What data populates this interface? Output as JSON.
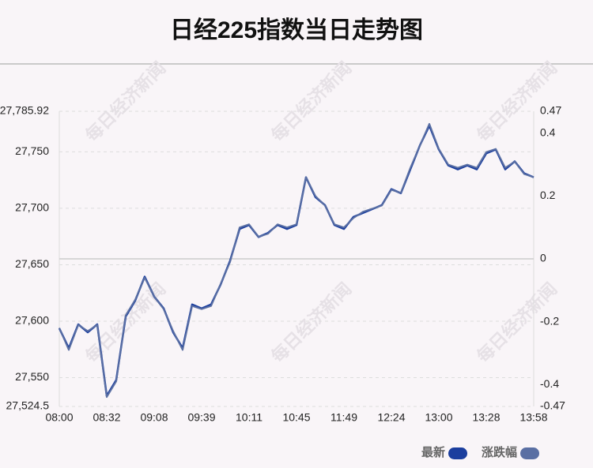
{
  "chart_data": {
    "type": "line",
    "title": "日经225指数当日走势图",
    "watermark": "每日经济新闻",
    "categories": [
      "08:00",
      null,
      null,
      null,
      null,
      "08:32",
      null,
      null,
      null,
      null,
      "09:08",
      null,
      null,
      null,
      null,
      "09:39",
      null,
      null,
      null,
      null,
      "10:11",
      null,
      null,
      null,
      null,
      "10:45",
      null,
      null,
      null,
      null,
      "11:49",
      null,
      null,
      null,
      null,
      "12:24",
      null,
      null,
      null,
      null,
      "13:00",
      null,
      null,
      null,
      null,
      "13:28",
      null,
      null,
      null,
      null,
      "13:58"
    ],
    "series": [
      {
        "name": "最新",
        "color": "#1b3e9e",
        "values": [
          27593.7,
          27576.1,
          27597.2,
          27590.1,
          27597.2,
          27533.8,
          27547.9,
          27604.2,
          27618.3,
          27639.4,
          27621.8,
          27611.3,
          27590.1,
          27576.1,
          27614.8,
          27611.3,
          27614.8,
          27632.4,
          27653.5,
          27681.7,
          27685.2,
          27674.6,
          27678.2,
          27685.2,
          27681.7,
          27685.2,
          27727.5,
          27709.9,
          27702.8,
          27685.2,
          27681.7,
          27692.3,
          27695.8,
          27699.3,
          27702.8,
          27716.9,
          27713.4,
          27734.5,
          27755.6,
          27773.2,
          27752.1,
          27738.0,
          27734.5,
          27738.0,
          27734.5,
          27748.6,
          27752.1,
          27734.5,
          27741.5,
          27731.0,
          27727.5
        ]
      },
      {
        "name": "涨跌幅",
        "color": "#5a6fa3",
        "axis": "y2",
        "values": [
          -0.22,
          -0.29,
          -0.21,
          -0.23,
          -0.21,
          -0.44,
          -0.39,
          -0.18,
          -0.13,
          -0.06,
          -0.12,
          -0.16,
          -0.23,
          -0.29,
          -0.15,
          -0.16,
          -0.15,
          -0.08,
          -0.01,
          0.1,
          0.11,
          0.07,
          0.08,
          0.11,
          0.1,
          0.11,
          0.26,
          0.2,
          0.17,
          0.11,
          0.1,
          0.13,
          0.15,
          0.16,
          0.17,
          0.22,
          0.21,
          0.29,
          0.36,
          0.43,
          0.35,
          0.3,
          0.29,
          0.3,
          0.29,
          0.34,
          0.35,
          0.29,
          0.31,
          0.27,
          0.26
        ]
      }
    ],
    "ylim": [
      27524.5,
      27785.92
    ],
    "yticks": [
      {
        "value": 27524.5,
        "label": "27,524.5"
      },
      {
        "value": 27550,
        "label": "27,550"
      },
      {
        "value": 27600,
        "label": "27,600"
      },
      {
        "value": 27650,
        "label": "27,650"
      },
      {
        "value": 27700,
        "label": "27,700"
      },
      {
        "value": 27750,
        "label": "27,750"
      },
      {
        "value": 27785.92,
        "label": "27,785.92"
      }
    ],
    "y2lim": [
      -0.47,
      0.47
    ],
    "y2ticks": [
      -0.47,
      -0.4,
      -0.2,
      0,
      0.2,
      0.4,
      0.47
    ],
    "grid": true
  }
}
